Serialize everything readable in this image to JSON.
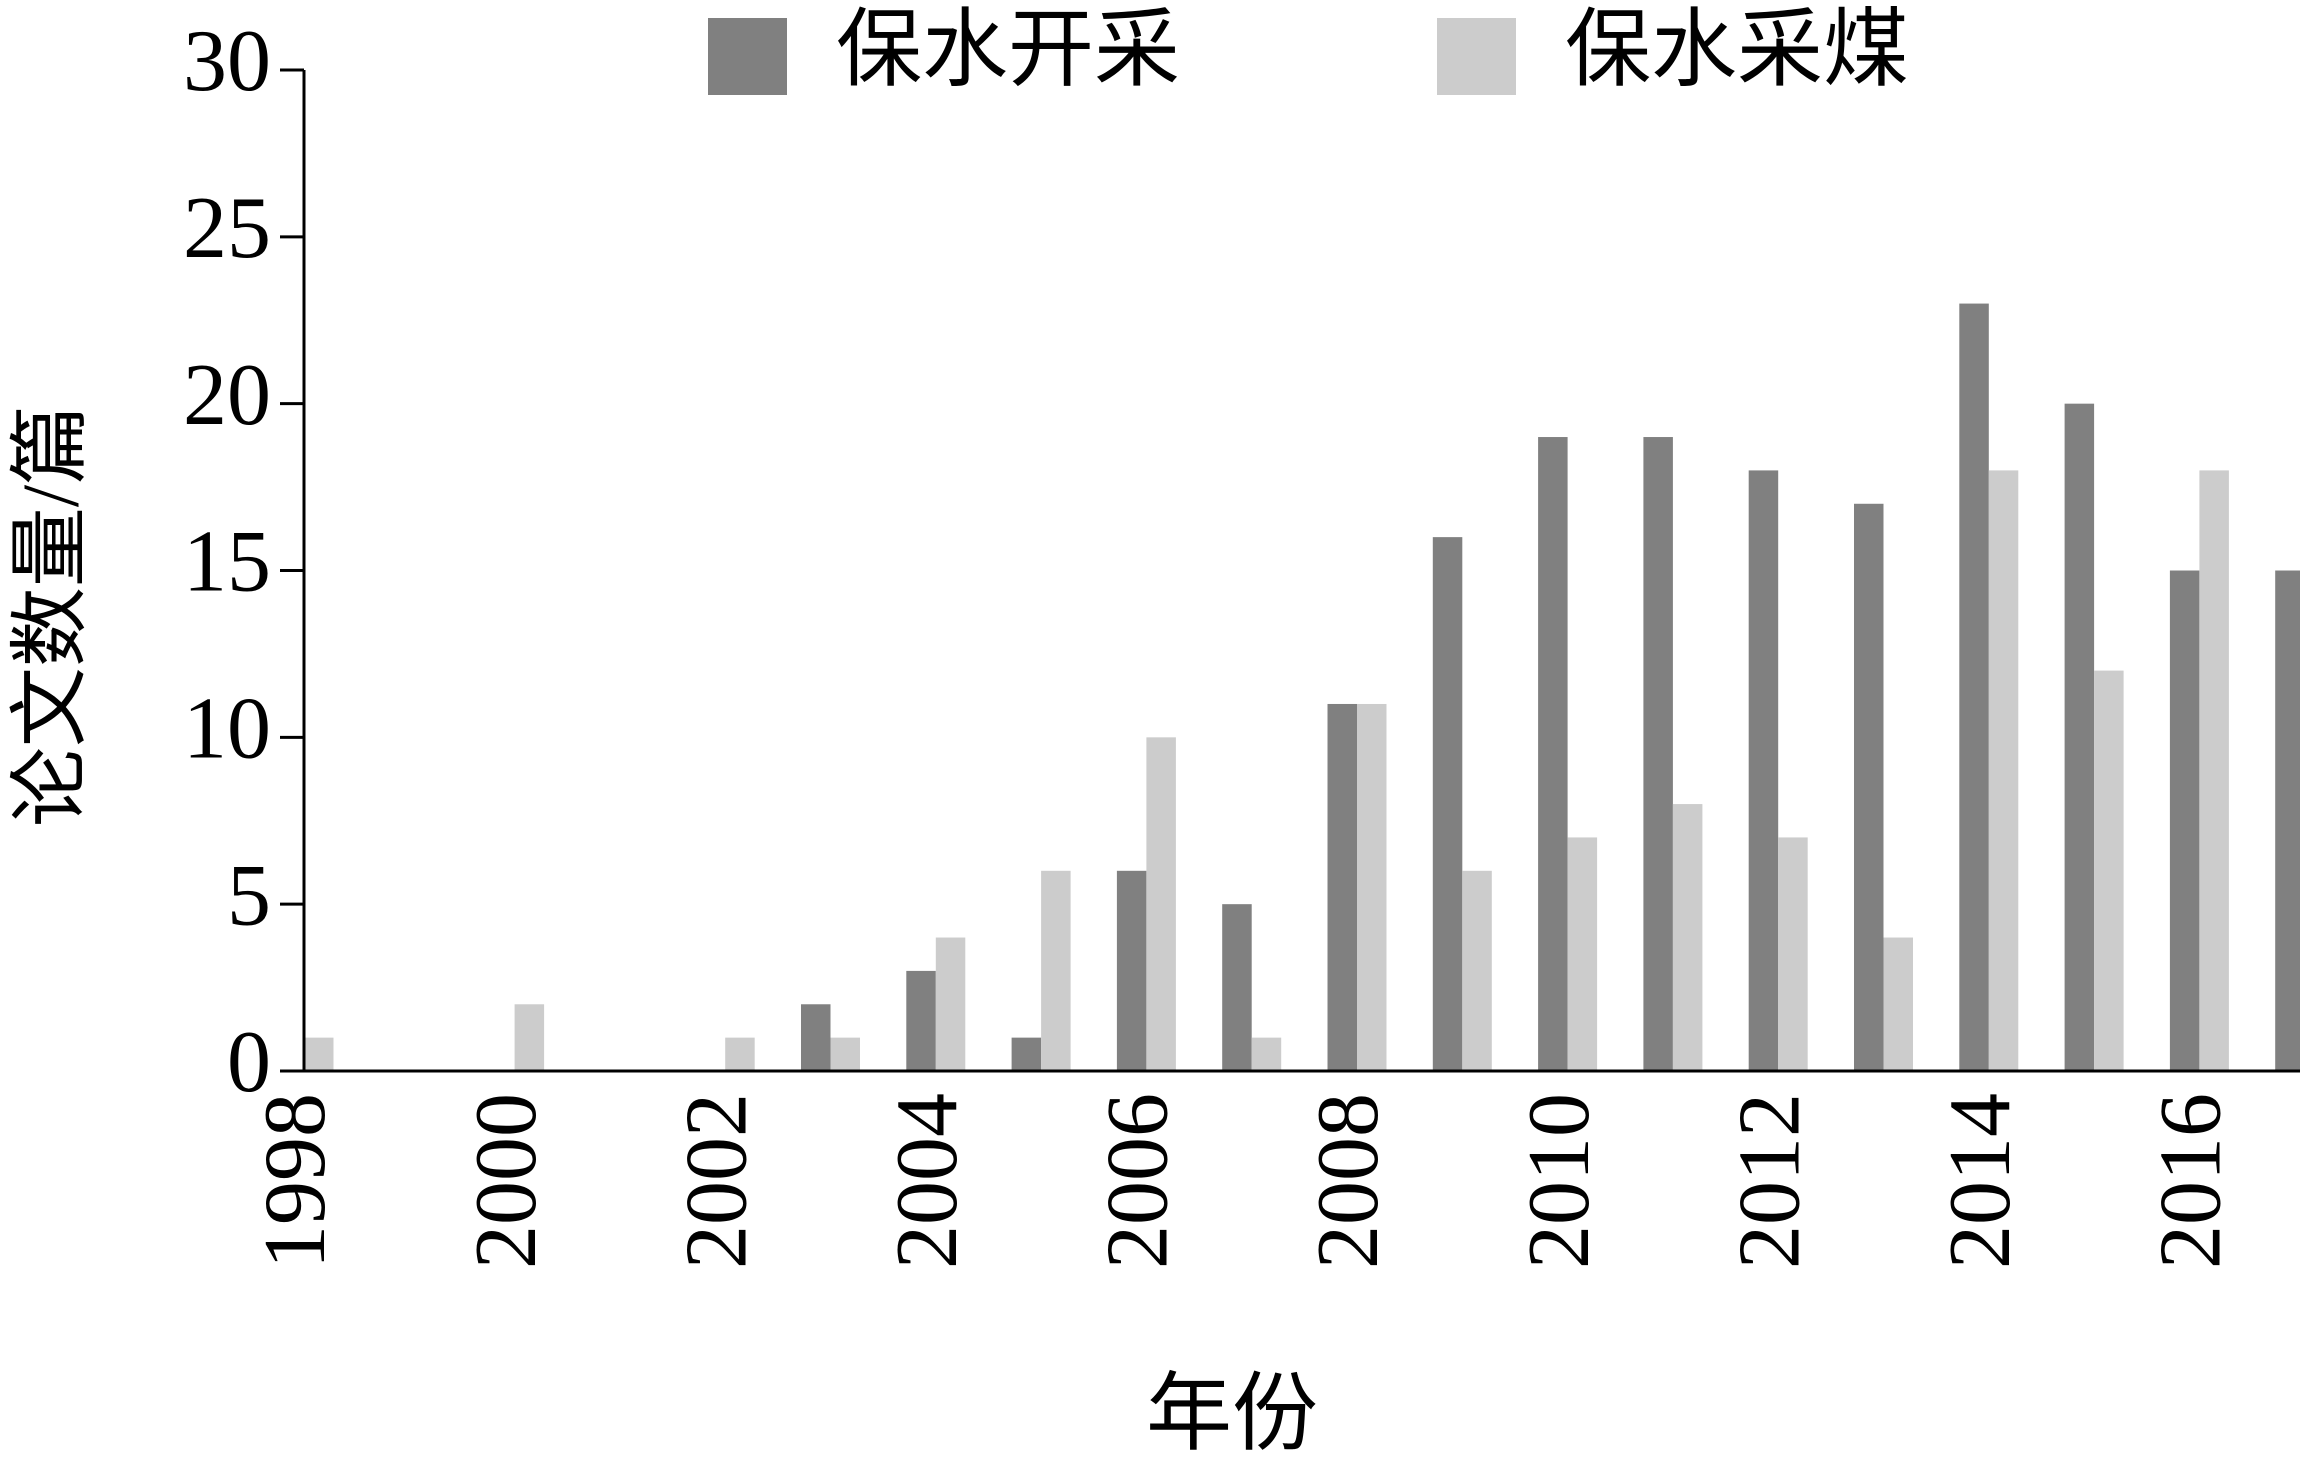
{
  "chart_data": {
    "type": "bar",
    "x_label": "年份",
    "y_label": "论文数量/篇",
    "categories": [
      "1998",
      null,
      "2000",
      null,
      "2002",
      null,
      "2004",
      null,
      "2006",
      null,
      "2008",
      null,
      "2010",
      null,
      "2012",
      null,
      "2014",
      null,
      "2016",
      null
    ],
    "series": [
      {
        "name": "保水开采",
        "color": "#808080",
        "values": [
          0,
          0,
          0,
          0,
          0,
          2,
          3,
          1,
          6,
          5,
          11,
          16,
          19,
          19,
          18,
          17,
          23,
          20,
          15,
          15
        ]
      },
      {
        "name": "保水采煤",
        "color": "#cccccc",
        "values": [
          1,
          0,
          2,
          0,
          1,
          1,
          4,
          6,
          10,
          1,
          11,
          6,
          7,
          8,
          7,
          4,
          18,
          12,
          18,
          null
        ]
      }
    ],
    "ylim": [
      0,
      30
    ],
    "yticks": [
      0,
      5,
      10,
      15,
      20,
      25,
      30
    ],
    "grid": false,
    "legend": "top"
  }
}
